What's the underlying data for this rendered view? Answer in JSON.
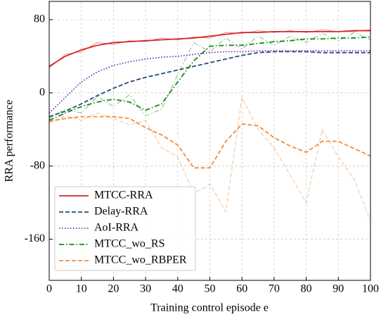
{
  "chart_data": {
    "type": "line",
    "xlabel": "Training control episode e",
    "ylabel": "RRA performance",
    "x": [
      0,
      5,
      10,
      15,
      20,
      25,
      30,
      35,
      40,
      45,
      50,
      55,
      60,
      65,
      70,
      75,
      80,
      85,
      90,
      95,
      100
    ],
    "xlim": [
      0,
      100
    ],
    "xticks": [
      0,
      10,
      20,
      30,
      40,
      50,
      60,
      70,
      80,
      90,
      100
    ],
    "ylim": [
      -205,
      100
    ],
    "yticks": [
      -160,
      -80,
      0,
      80
    ],
    "grid": true,
    "legend": "lower left",
    "series": [
      {
        "name": "MTCC-RRA",
        "color": "#d62728",
        "dash": "solid",
        "values": [
          29,
          40,
          47,
          52,
          55,
          56,
          57,
          58,
          59,
          60,
          62,
          64,
          66,
          66,
          67,
          67,
          67,
          67,
          67,
          68,
          68
        ],
        "raw_values": [
          27,
          42,
          45,
          55,
          53,
          57,
          56,
          60,
          58,
          61,
          60,
          66,
          65,
          68,
          66,
          68,
          66,
          69,
          67,
          67,
          69
        ]
      },
      {
        "name": "Delay-RRA",
        "color": "#1f4e79",
        "dash": "dashed",
        "values": [
          -26,
          -20,
          -12,
          -3,
          5,
          12,
          17,
          21,
          25,
          29,
          33,
          37,
          41,
          44,
          45,
          45,
          45,
          44,
          44,
          44,
          44
        ],
        "raw_values": [
          -26,
          -20,
          -12,
          -3,
          5,
          12,
          17,
          21,
          25,
          29,
          33,
          37,
          41,
          44,
          45,
          45,
          45,
          44,
          44,
          44,
          44
        ]
      },
      {
        "name": "AoI-RRA",
        "color": "#7b2fbe",
        "dash": "dotted",
        "values": [
          -22,
          -5,
          12,
          23,
          30,
          34,
          37,
          39,
          40,
          42,
          44,
          45,
          45,
          46,
          46,
          46,
          46,
          46,
          46,
          46,
          46
        ],
        "raw_values": [
          -22,
          -5,
          12,
          23,
          30,
          34,
          37,
          39,
          40,
          42,
          44,
          45,
          45,
          46,
          46,
          46,
          46,
          46,
          46,
          46,
          46
        ]
      },
      {
        "name": "MTCC_wo_RS",
        "color": "#138a13",
        "dash": "dashdot",
        "values": [
          -30,
          -22,
          -15,
          -10,
          -7,
          -10,
          -19,
          -12,
          12,
          35,
          51,
          52,
          52,
          54,
          56,
          57,
          59,
          59,
          60,
          60,
          61
        ],
        "raw_values": [
          -28,
          -18,
          -22,
          -4,
          -15,
          -2,
          -25,
          -18,
          20,
          55,
          45,
          60,
          48,
          62,
          52,
          62,
          55,
          65,
          57,
          66,
          58
        ]
      },
      {
        "name": "MTCC_wo_RBPER",
        "color": "#f08c3c",
        "dash": "dashed",
        "values": [
          -31,
          -28,
          -26,
          -26,
          -26,
          -28,
          -38,
          -46,
          -57,
          -82,
          -82,
          -53,
          -34,
          -36,
          -49,
          -58,
          -65,
          -53,
          -53,
          -61,
          -69
        ],
        "raw_values": [
          -33,
          -25,
          -30,
          -22,
          -28,
          -35,
          -30,
          -60,
          -70,
          -110,
          -100,
          -130,
          -5,
          -40,
          -60,
          -90,
          -120,
          -40,
          -70,
          -95,
          -140
        ]
      }
    ]
  }
}
